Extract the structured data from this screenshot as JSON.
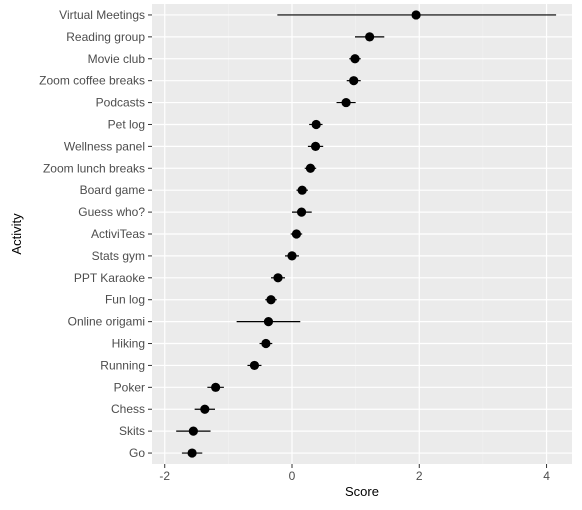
{
  "chart_data": {
    "type": "scatter",
    "subtype": "dot-and-whisker",
    "title": "",
    "xlabel": "Score",
    "ylabel": "Activity",
    "xlim": [
      -2.2,
      4.4
    ],
    "xticks": [
      -2,
      0,
      2,
      4
    ],
    "grid": true,
    "legend": "none",
    "points": [
      {
        "label": "Virtual Meetings",
        "estimate": 1.95,
        "low": -0.23,
        "high": 4.15
      },
      {
        "label": "Reading group",
        "estimate": 1.22,
        "low": 0.99,
        "high": 1.45
      },
      {
        "label": "Movie club",
        "estimate": 0.99,
        "low": 0.9,
        "high": 1.08
      },
      {
        "label": "Zoom coffee breaks",
        "estimate": 0.97,
        "low": 0.86,
        "high": 1.08
      },
      {
        "label": "Podcasts",
        "estimate": 0.85,
        "low": 0.7,
        "high": 1.0
      },
      {
        "label": "Pet log",
        "estimate": 0.38,
        "low": 0.27,
        "high": 0.48
      },
      {
        "label": "Wellness panel",
        "estimate": 0.37,
        "low": 0.25,
        "high": 0.49
      },
      {
        "label": "Zoom lunch breaks",
        "estimate": 0.29,
        "low": 0.2,
        "high": 0.38
      },
      {
        "label": "Board game",
        "estimate": 0.16,
        "low": 0.07,
        "high": 0.25
      },
      {
        "label": "Guess who?",
        "estimate": 0.15,
        "low": 0.0,
        "high": 0.31
      },
      {
        "label": "ActiviTeas",
        "estimate": 0.07,
        "low": -0.02,
        "high": 0.16
      },
      {
        "label": "Stats gym",
        "estimate": 0.0,
        "low": -0.11,
        "high": 0.11
      },
      {
        "label": "PPT Karaoke",
        "estimate": -0.22,
        "low": -0.33,
        "high": -0.11
      },
      {
        "label": "Fun log",
        "estimate": -0.33,
        "low": -0.42,
        "high": -0.24
      },
      {
        "label": "Online origami",
        "estimate": -0.37,
        "low": -0.87,
        "high": 0.13
      },
      {
        "label": "Hiking",
        "estimate": -0.41,
        "low": -0.51,
        "high": -0.31
      },
      {
        "label": "Running",
        "estimate": -0.59,
        "low": -0.7,
        "high": -0.48
      },
      {
        "label": "Poker",
        "estimate": -1.2,
        "low": -1.33,
        "high": -1.07
      },
      {
        "label": "Chess",
        "estimate": -1.37,
        "low": -1.53,
        "high": -1.21
      },
      {
        "label": "Skits",
        "estimate": -1.55,
        "low": -1.82,
        "high": -1.28
      },
      {
        "label": "Go",
        "estimate": -1.57,
        "low": -1.73,
        "high": -1.41
      }
    ],
    "colors": {
      "panel": "#ebebeb",
      "grid_major": "#ffffff",
      "grid_minor": "#f3f3f3",
      "point": "#000000",
      "axis_text": "#4d4d4d",
      "axis_ticks": "#333333"
    }
  }
}
